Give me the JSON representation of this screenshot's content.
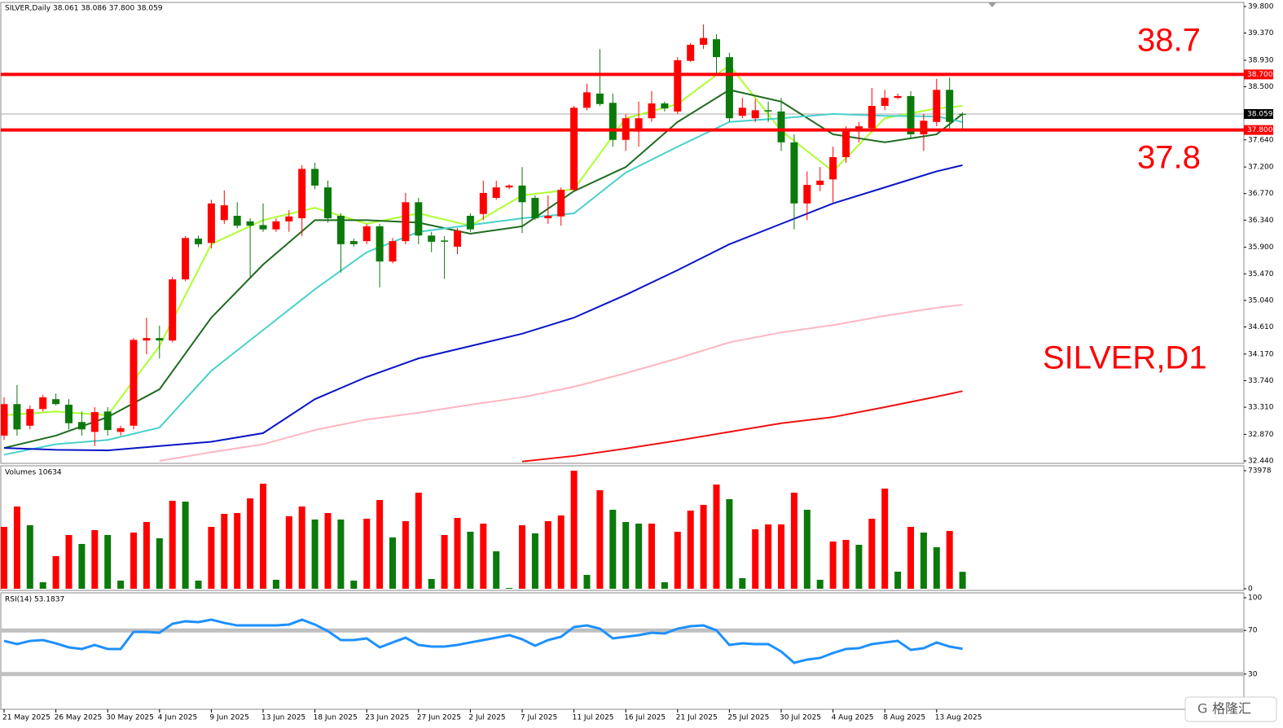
{
  "chart_data": [
    {
      "type": "candlestick",
      "title": "SILVER,Daily  38.061 38.086 37.800 38.059",
      "categories": [
        "21 May 2025",
        null,
        null,
        null,
        "26 May 2025",
        null,
        null,
        null,
        "30 May 2025",
        null,
        null,
        null,
        "4 Jun 2025",
        null,
        null,
        null,
        "9 Jun 2025",
        null,
        null,
        null,
        "13 Jun 2025",
        null,
        null,
        null,
        "18 Jun 2025",
        null,
        null,
        null,
        "23 Jun 2025",
        null,
        null,
        null,
        "27 Jun 2025",
        null,
        null,
        null,
        "2 Jul 2025",
        null,
        null,
        null,
        "7 Jul 2025",
        null,
        null,
        null,
        "11 Jul 2025",
        null,
        null,
        null,
        "16 Jul 2025",
        null,
        null,
        null,
        "21 Jul 2025",
        null,
        null,
        null,
        "25 Jul 2025",
        null,
        null,
        null,
        "30 Jul 2025",
        null,
        null,
        null,
        "4 Aug 2025",
        null,
        null,
        null,
        "8 Aug 2025",
        null,
        null,
        null,
        "13 Aug 2025",
        null,
        null
      ],
      "open": [
        32.85,
        33.36,
        33.01,
        33.28,
        33.44,
        33.35,
        33.07,
        32.91,
        33.24,
        32.91,
        33.01,
        34.39,
        34.43,
        34.39,
        35.38,
        36.04,
        35.97,
        36.34,
        36.41,
        36.32,
        36.26,
        36.19,
        36.32,
        36.37,
        37.17,
        36.87,
        36.41,
        36.0,
        36.0,
        36.24,
        35.67,
        36.0,
        36.63,
        36.09,
        36.01,
        35.91,
        36.41,
        36.44,
        36.7,
        36.87,
        36.9,
        36.7,
        36.37,
        36.4,
        36.83,
        38.16,
        38.39,
        38.24,
        37.64,
        37.79,
        37.99,
        38.23,
        38.1,
        38.92,
        39.18,
        39.27,
        38.98,
        38.03,
        37.99,
        38.12,
        38.1,
        37.6,
        36.61,
        36.91,
        37.0,
        37.36,
        37.79,
        37.83,
        38.19,
        38.32,
        38.35,
        37.73,
        37.93,
        38.45,
        38.061
      ],
      "high": [
        33.47,
        33.67,
        33.34,
        33.51,
        33.53,
        33.44,
        33.24,
        33.31,
        33.31,
        33.01,
        34.43,
        34.76,
        34.63,
        35.42,
        36.08,
        36.09,
        36.67,
        36.82,
        36.63,
        36.37,
        36.61,
        36.37,
        36.5,
        37.23,
        37.27,
        36.98,
        36.45,
        36.04,
        36.28,
        36.28,
        36.05,
        36.78,
        36.7,
        36.15,
        36.08,
        36.21,
        36.45,
        36.98,
        36.98,
        36.92,
        37.2,
        36.74,
        36.74,
        36.87,
        38.19,
        38.55,
        39.11,
        38.39,
        38.06,
        38.26,
        38.43,
        38.26,
        38.98,
        39.21,
        39.51,
        39.35,
        39.05,
        38.32,
        38.3,
        38.26,
        38.32,
        37.73,
        37.13,
        37.2,
        37.53,
        37.86,
        37.93,
        38.48,
        38.45,
        38.39,
        38.43,
        38.06,
        38.63,
        38.65,
        38.086
      ],
      "low": [
        32.78,
        32.85,
        32.95,
        33.24,
        33.34,
        32.95,
        32.85,
        32.68,
        32.85,
        32.85,
        32.95,
        34.17,
        34.1,
        34.36,
        35.35,
        35.9,
        35.88,
        36.28,
        36.21,
        35.42,
        36.15,
        36.15,
        36.15,
        36.08,
        36.84,
        36.3,
        35.49,
        35.91,
        35.95,
        35.25,
        35.64,
        35.95,
        35.95,
        35.82,
        35.39,
        35.79,
        36.15,
        36.34,
        36.67,
        36.84,
        36.13,
        36.34,
        36.28,
        36.25,
        36.81,
        38.12,
        38.19,
        37.53,
        37.46,
        37.53,
        37.93,
        38.1,
        38.06,
        38.9,
        39.11,
        38.72,
        37.93,
        37.99,
        37.93,
        37.93,
        37.46,
        36.19,
        36.34,
        36.81,
        36.63,
        37.27,
        37.6,
        37.79,
        38.12,
        38.3,
        37.66,
        37.46,
        37.86,
        37.82,
        37.8
      ],
      "close": [
        33.36,
        32.95,
        33.28,
        33.47,
        33.36,
        33.05,
        32.95,
        33.23,
        32.94,
        32.97,
        34.4,
        34.43,
        34.39,
        35.38,
        36.05,
        35.95,
        36.61,
        36.58,
        36.25,
        36.25,
        36.19,
        36.32,
        36.4,
        37.17,
        36.9,
        36.37,
        35.95,
        35.95,
        36.24,
        35.67,
        36.0,
        36.63,
        36.09,
        35.99,
        35.99,
        36.17,
        36.19,
        36.78,
        36.87,
        36.9,
        36.63,
        36.37,
        36.41,
        36.83,
        38.16,
        38.41,
        38.22,
        37.64,
        37.99,
        37.99,
        38.23,
        38.15,
        38.93,
        39.18,
        39.29,
        38.98,
        37.99,
        38.16,
        38.12,
        38.1,
        37.6,
        36.61,
        36.91,
        36.98,
        37.36,
        37.79,
        37.86,
        38.19,
        38.32,
        38.35,
        37.73,
        37.95,
        38.45,
        37.93,
        38.059
      ],
      "up_color": "#ff0000",
      "down_color": "#0b7a0b",
      "ylim": [
        32.44,
        39.8
      ],
      "yticks": [
        {
          "value": 39.8,
          "label": "39.800"
        },
        {
          "value": 39.37,
          "label": "39.370"
        },
        {
          "value": 38.93,
          "label": "38.930"
        },
        {
          "value": 38.5,
          "label": "38.500"
        },
        {
          "value": 37.64,
          "label": "37.640"
        },
        {
          "value": 37.2,
          "label": "37.200"
        },
        {
          "value": 36.77,
          "label": "36.770"
        },
        {
          "value": 36.34,
          "label": "36.340"
        },
        {
          "value": 35.9,
          "label": "35.900"
        },
        {
          "value": 35.47,
          "label": "35.470"
        },
        {
          "value": 35.04,
          "label": "35.040"
        },
        {
          "value": 34.61,
          "label": "34.610"
        },
        {
          "value": 34.17,
          "label": "34.170"
        },
        {
          "value": 33.74,
          "label": "33.740"
        },
        {
          "value": 33.31,
          "label": "33.310"
        },
        {
          "value": 32.87,
          "label": "32.870"
        },
        {
          "value": 32.44,
          "label": "32.440"
        }
      ],
      "line_x": [
        0,
        4,
        8,
        12,
        16,
        20,
        24,
        28,
        32,
        36,
        40,
        44,
        48,
        52,
        56,
        60,
        64,
        68,
        72,
        74
      ],
      "lines": [
        {
          "color": "#adff2f",
          "values": [
            33.18,
            33.24,
            33.18,
            34.3,
            35.95,
            36.34,
            36.54,
            36.28,
            36.45,
            36.25,
            36.74,
            36.84,
            37.99,
            38.22,
            38.85,
            37.79,
            37.13,
            37.99,
            38.15,
            38.19
          ]
        },
        {
          "color": "#1f6b1f",
          "values": [
            32.65,
            32.85,
            33.15,
            33.6,
            34.76,
            35.62,
            36.34,
            36.34,
            36.3,
            36.12,
            36.24,
            36.81,
            37.2,
            37.93,
            38.45,
            38.26,
            37.73,
            37.6,
            37.73,
            38.06
          ]
        },
        {
          "color": "#48d1cc",
          "values": [
            32.54,
            32.71,
            32.78,
            32.98,
            33.9,
            34.56,
            35.22,
            35.82,
            36.15,
            36.26,
            36.37,
            36.45,
            37.11,
            37.53,
            37.93,
            37.99,
            38.06,
            38.03,
            38.02,
            37.93
          ]
        },
        {
          "color": "#0a14c8",
          "values": [
            32.65,
            32.62,
            32.61,
            32.68,
            32.75,
            32.89,
            33.44,
            33.8,
            34.1,
            34.3,
            34.5,
            34.76,
            35.13,
            35.53,
            35.95,
            36.28,
            36.61,
            36.87,
            37.13,
            37.23
          ]
        },
        {
          "color": "#ffb6c1",
          "values": [
            null,
            null,
            null,
            32.44,
            32.58,
            32.71,
            32.94,
            33.11,
            33.22,
            33.35,
            33.47,
            33.64,
            33.86,
            34.1,
            34.36,
            34.52,
            34.64,
            34.79,
            34.92,
            34.97
          ]
        },
        {
          "color": "#ee1111",
          "values": [
            null,
            null,
            null,
            null,
            null,
            null,
            null,
            null,
            null,
            null,
            32.43,
            32.52,
            32.64,
            32.77,
            32.91,
            33.05,
            33.15,
            33.31,
            33.48,
            33.57
          ]
        }
      ],
      "hlines": [
        {
          "value": 38.7,
          "label": "38.700"
        },
        {
          "value": 37.8,
          "label": "37.800"
        }
      ],
      "hline_color": "#ff0000",
      "last_price": {
        "value": 38.059,
        "label": "38.059"
      },
      "annotations": [
        "38.7",
        "37.8",
        "SILVER,D1"
      ]
    },
    {
      "type": "bar",
      "title": "Volumes 10634",
      "values": [
        38775,
        51530,
        39796,
        4082,
        20408,
        33673,
        28061,
        36734,
        33673,
        5102,
        35204,
        41836,
        31632,
        55102,
        54591,
        5102,
        38775,
        46938,
        47449,
        56632,
        65816,
        5612,
        45408,
        51530,
        43367,
        47449,
        43367,
        5102,
        43877,
        55612,
        32143,
        42347,
        60204,
        6122,
        33673,
        44387,
        35714,
        40816,
        23469,
        510,
        39796,
        34694,
        42347,
        45918,
        73978,
        8673,
        61734,
        49489,
        41836,
        40816,
        40816,
        4082,
        35714,
        48979,
        52551,
        65306,
        56122,
        6633,
        37245,
        40306,
        40306,
        60204,
        49489,
        5612,
        29592,
        30612,
        27551,
        43877,
        62755,
        10714,
        38775,
        35204,
        26020,
        36224,
        10634
      ],
      "up_color": "#ff0000",
      "down_color": "#0b7a0b",
      "ylim": [
        0,
        73978
      ],
      "yticks": [
        0,
        73978
      ]
    },
    {
      "type": "line",
      "title": "RSI(14) 53.1837",
      "values": [
        60.4,
        57.5,
        60.4,
        61.2,
        58.2,
        54.5,
        53.0,
        56.7,
        53.0,
        53.0,
        68.7,
        68.7,
        67.9,
        76.1,
        78.4,
        77.6,
        79.9,
        76.9,
        74.6,
        74.6,
        74.6,
        74.6,
        75.4,
        79.9,
        75.4,
        69.4,
        61.2,
        61.2,
        62.7,
        54.5,
        59.0,
        63.4,
        56.7,
        55.2,
        55.2,
        56.7,
        59.0,
        61.2,
        63.4,
        65.7,
        61.9,
        56.0,
        61.2,
        64.2,
        73.1,
        74.6,
        71.6,
        62.7,
        64.2,
        65.7,
        67.9,
        67.2,
        71.6,
        73.9,
        74.6,
        70.1,
        56.7,
        58.2,
        57.5,
        57.5,
        50.7,
        40.3,
        43.3,
        44.8,
        49.3,
        53.0,
        53.7,
        57.5,
        59.0,
        60.4,
        52.2,
        53.7,
        59.0,
        55.2,
        53.1837
      ],
      "color": "#1e90ff",
      "level_color": "#c0c0c0",
      "ylim": [
        0,
        100
      ],
      "yticks": [
        100,
        70,
        30
      ],
      "levels": [
        70,
        30
      ]
    }
  ],
  "watermark": "格隆汇"
}
